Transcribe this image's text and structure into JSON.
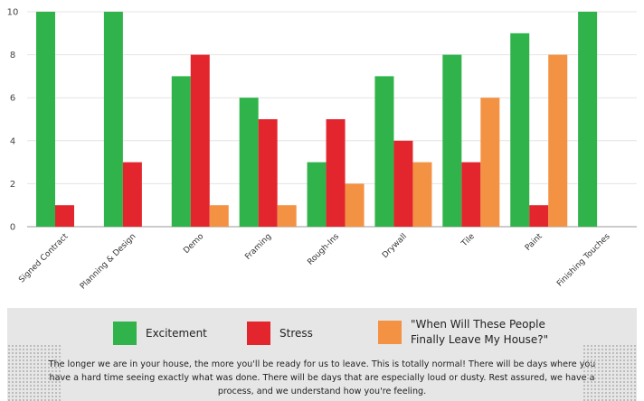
{
  "chart_data": {
    "type": "bar",
    "categories": [
      "Signed Contract",
      "Planning & Design",
      "Demo",
      "Framing",
      "Rough-Ins",
      "Drywall",
      "Tile",
      "Paint",
      "Finishing Touches"
    ],
    "series": [
      {
        "name": "Excitement",
        "color": "#2fb34a",
        "values": [
          10,
          10,
          7,
          6,
          3,
          7,
          8,
          9,
          10
        ]
      },
      {
        "name": "Stress",
        "color": "#e3262e",
        "values": [
          1,
          3,
          8,
          5,
          5,
          4,
          3,
          1,
          0
        ]
      },
      {
        "name": "\"When Will These People Finally Leave My House?\"",
        "color": "#f39243",
        "values": [
          0,
          0,
          1,
          1,
          2,
          3,
          6,
          8,
          0
        ]
      }
    ],
    "ylim": [
      0,
      10
    ],
    "yticks": [
      0,
      2,
      4,
      6,
      8,
      10
    ],
    "grid": true,
    "legend_position": "bottom"
  },
  "legend": {
    "excitement": "Excitement",
    "stress": "Stress",
    "leave_line1": "\"When Will These People",
    "leave_line2": "Finally Leave My House?\""
  },
  "footnote": "The longer we are in your house, the more you'll be ready for us to leave. This is totally normal! There will be days where you have a hard time seeing exactly what was done. There will be days that are especially loud or dusty. Rest assured, we have a process, and we understand how you're feeling."
}
